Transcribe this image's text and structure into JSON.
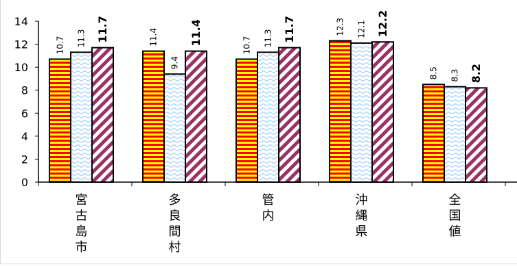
{
  "chart_data": {
    "type": "bar",
    "categories": [
      "宮古島市",
      "多良間村",
      "管内",
      "沖縄県",
      "全国値"
    ],
    "series": [
      {
        "values": [
          10.7,
          11.4,
          10.7,
          12.3,
          8.5
        ],
        "pattern": "horizontal-stripes",
        "colors": [
          "#ff0000",
          "#ffff00"
        ]
      },
      {
        "values": [
          11.3,
          9.4,
          11.3,
          12.1,
          8.3
        ],
        "pattern": "wavy",
        "colors": [
          "#99ccff",
          "#ffffff"
        ]
      },
      {
        "values": [
          11.7,
          11.4,
          11.7,
          12.2,
          8.2
        ],
        "pattern": "diagonal-stripes",
        "colors": [
          "#993366",
          "#ffffff"
        ]
      }
    ],
    "ylim": [
      0,
      14
    ],
    "yticks": [
      0,
      2,
      4,
      6,
      8,
      10,
      12,
      14
    ],
    "grid": false,
    "legend": "none"
  }
}
